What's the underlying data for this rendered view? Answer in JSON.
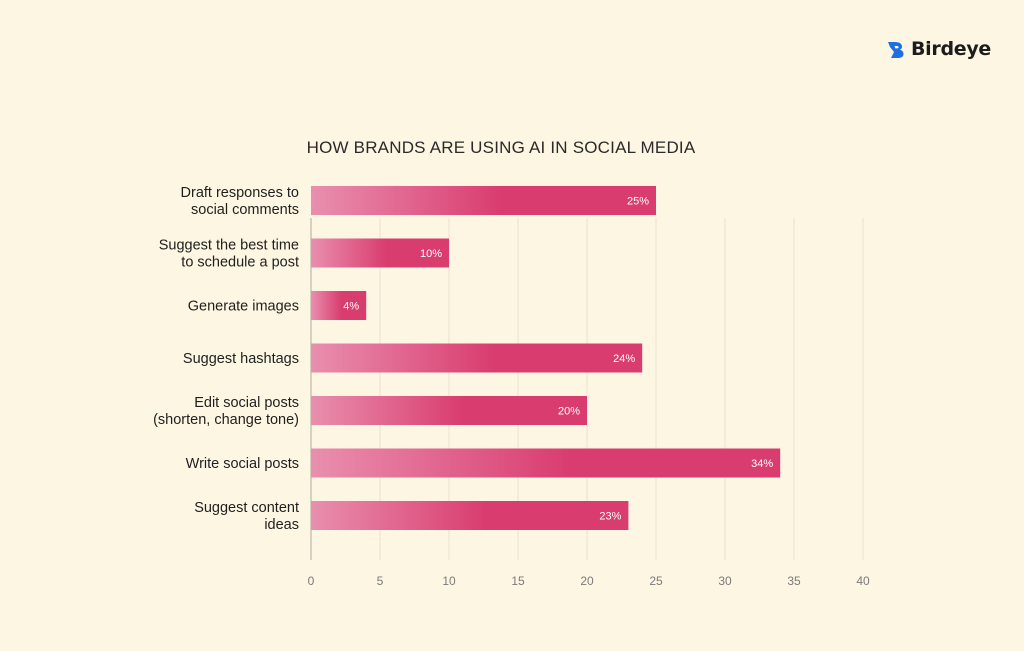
{
  "brand": {
    "name": "Birdeye",
    "color": "#1e6fe0"
  },
  "colors": {
    "background": "#fdf6e3",
    "bar_start": "#e98fae",
    "bar_end": "#d93d70",
    "grid": "#ece3cc",
    "axis": "#b0ab9c",
    "text": "#1f1f1f",
    "tick": "#7a7a7a"
  },
  "chart_data": {
    "type": "bar",
    "orientation": "horizontal",
    "title": "HOW BRANDS ARE USING AI IN SOCIAL MEDIA",
    "categories": [
      [
        "Draft responses to",
        "social comments"
      ],
      [
        "Suggest the best time",
        "to schedule a post"
      ],
      [
        "Generate images"
      ],
      [
        "Suggest hashtags"
      ],
      [
        "Edit social posts",
        "(shorten, change tone)"
      ],
      [
        "Write social posts"
      ],
      [
        "Suggest content",
        "ideas"
      ]
    ],
    "values": [
      25,
      10,
      4,
      24,
      20,
      34,
      23
    ],
    "data_labels": [
      "25%",
      "10%",
      "4%",
      "24%",
      "20%",
      "34%",
      "23%"
    ],
    "xlim": [
      0,
      40
    ],
    "xticks": [
      0,
      5,
      10,
      15,
      20,
      25,
      30,
      35,
      40
    ],
    "xlabel": "",
    "ylabel": "",
    "grid": true
  }
}
